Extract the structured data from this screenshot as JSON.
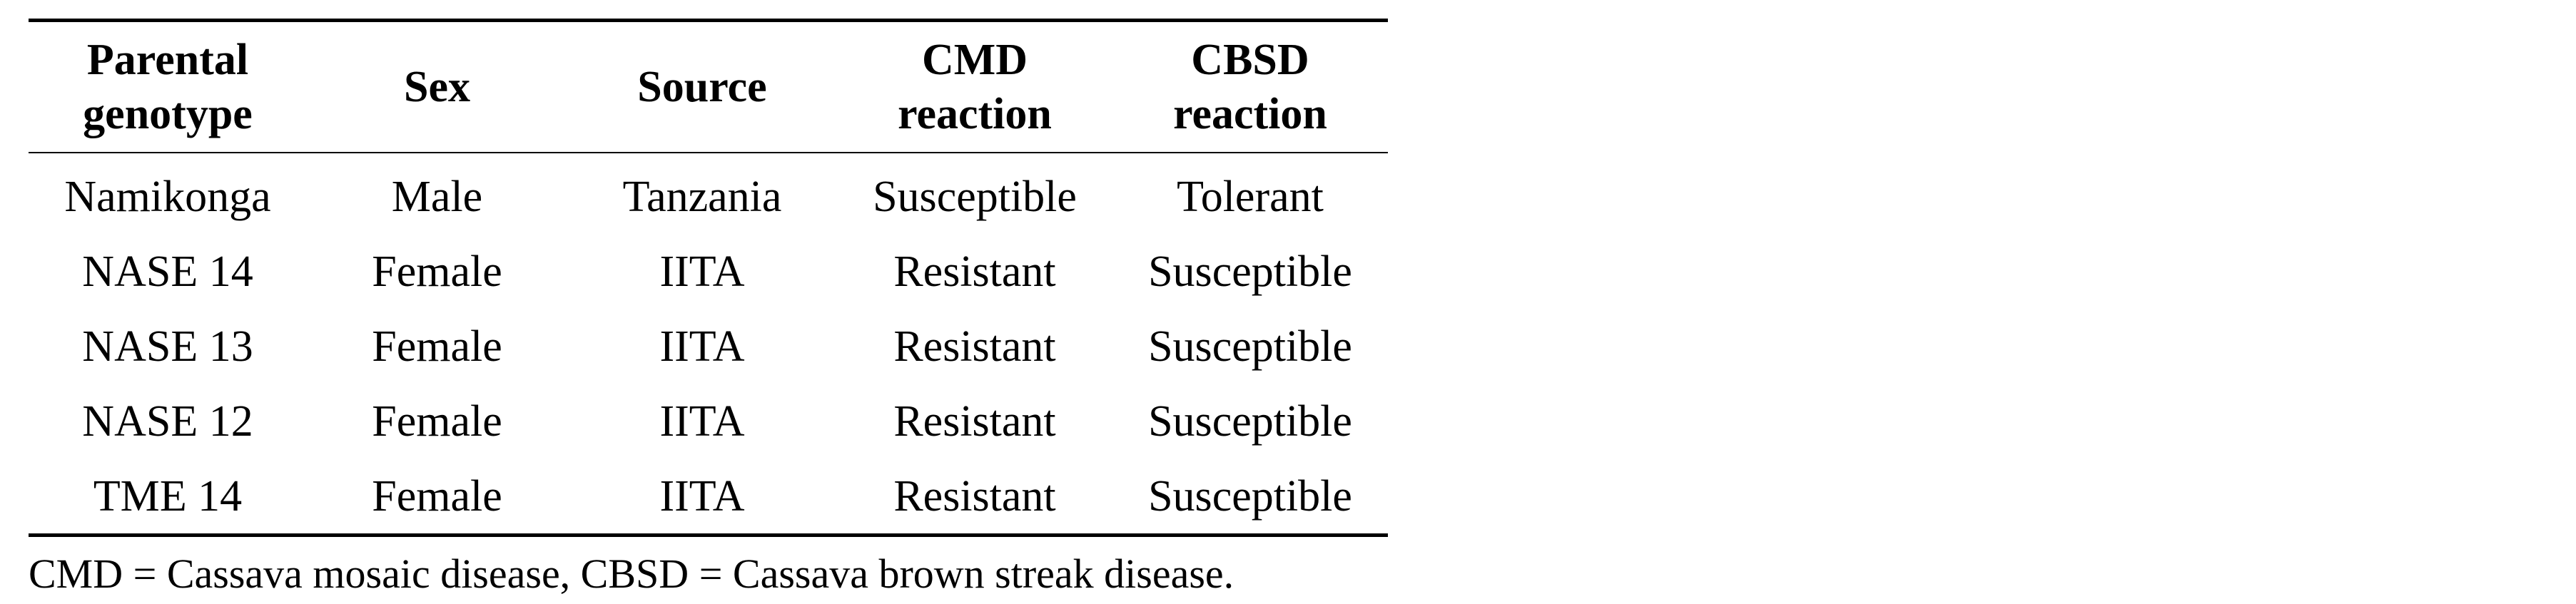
{
  "table": {
    "headers": [
      [
        "Parental",
        "genotype"
      ],
      [
        "Sex"
      ],
      [
        "Source"
      ],
      [
        "CMD",
        "reaction"
      ],
      [
        "CBSD",
        "reaction"
      ]
    ],
    "rows": [
      [
        "Namikonga",
        "Male",
        "Tanzania",
        "Susceptible",
        "Tolerant"
      ],
      [
        "NASE 14",
        "Female",
        "IITA",
        "Resistant",
        "Susceptible"
      ],
      [
        "NASE 13",
        "Female",
        "IITA",
        "Resistant",
        "Susceptible"
      ],
      [
        "NASE 12",
        "Female",
        "IITA",
        "Resistant",
        "Susceptible"
      ],
      [
        "TME 14",
        "Female",
        "IITA",
        "Resistant",
        "Susceptible"
      ]
    ]
  },
  "footnote": "CMD = Cassava mosaic disease, CBSD = Cassava brown streak disease."
}
